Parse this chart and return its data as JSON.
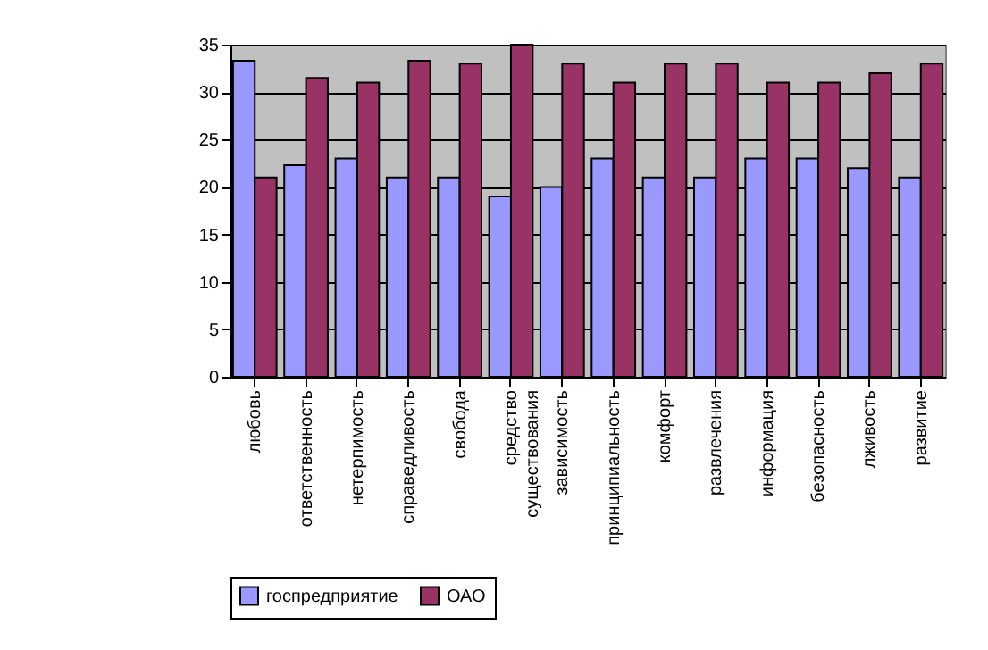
{
  "chart_data": {
    "type": "bar",
    "categories": [
      "любовь",
      "ответственность",
      "нетерпимость",
      "справедливость",
      "свобода",
      "средство существования",
      "зависимость",
      "принципиальность",
      "комфорт",
      "развлечения",
      "информация",
      "безопасность",
      "лживость",
      "развитие"
    ],
    "series": [
      {
        "name": "госпредприятие",
        "color": "#9999ff",
        "values": [
          33.3,
          22.3,
          23,
          21,
          21,
          19,
          20,
          23,
          21,
          21,
          23,
          23,
          22,
          21
        ]
      },
      {
        "name": "ОАО",
        "color": "#993366",
        "values": [
          21,
          31.5,
          31,
          33.3,
          33,
          35,
          33,
          31,
          33,
          33,
          31,
          31,
          32,
          33
        ]
      }
    ],
    "ylim": [
      0,
      35
    ],
    "yticks": [
      0,
      5,
      10,
      15,
      20,
      25,
      30,
      35
    ],
    "grid": "y",
    "legend": "bottom"
  }
}
